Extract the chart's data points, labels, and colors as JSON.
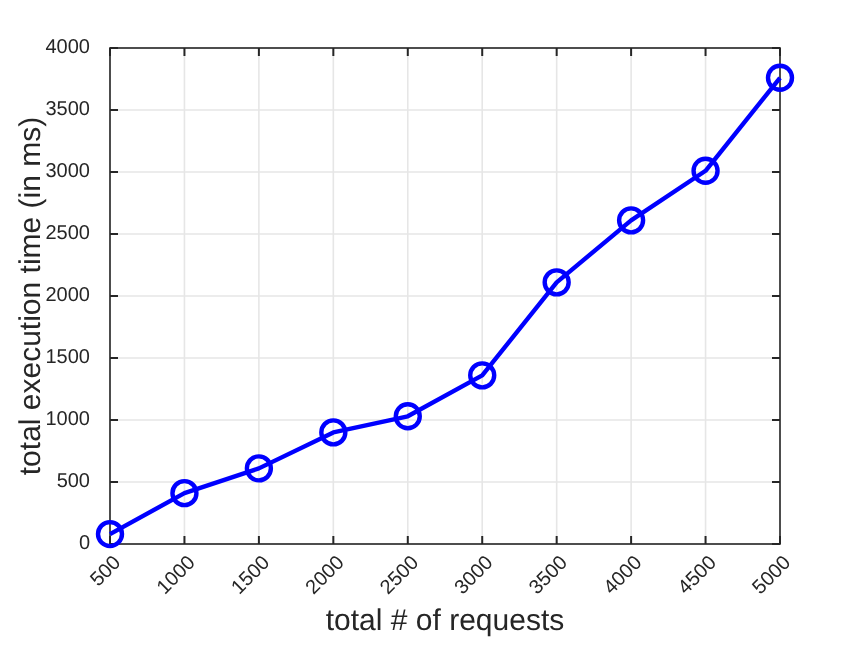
{
  "chart_data": {
    "type": "line",
    "xlabel": "total # of requests",
    "ylabel": "total execution time (in ms)",
    "x": [
      500,
      1000,
      1500,
      2000,
      2500,
      3000,
      3500,
      4000,
      4500,
      5000
    ],
    "series": [
      {
        "color": "#0000ff",
        "values": [
          80,
          410,
          610,
          900,
          1030,
          1360,
          2110,
          2610,
          3010,
          3760
        ]
      }
    ],
    "xlim": [
      500,
      5000
    ],
    "xticks": [
      500,
      1000,
      1500,
      2000,
      2500,
      3000,
      3500,
      4000,
      4500,
      5000
    ],
    "ylim": [
      0,
      4000
    ],
    "yticks": [
      0,
      500,
      1000,
      1500,
      2000,
      2500,
      3000,
      3500,
      4000
    ],
    "grid": true,
    "marker": "circle",
    "line_style": "solid"
  }
}
